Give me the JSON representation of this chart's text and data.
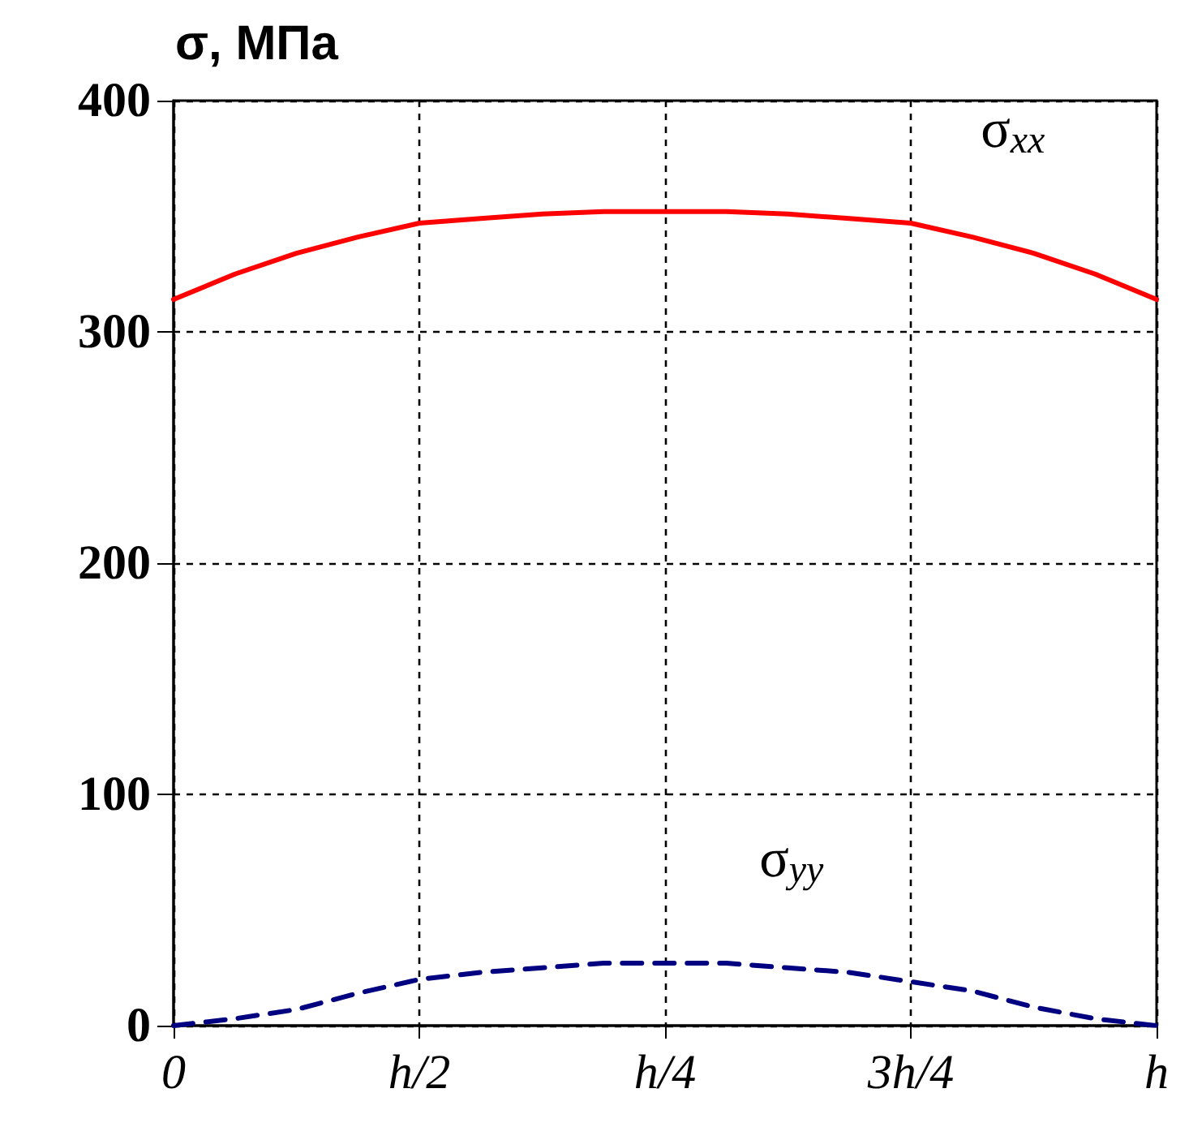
{
  "chart_data": {
    "type": "line",
    "ylabel": "σ, МПа",
    "categories": [
      "0",
      null,
      null,
      null,
      "h/2",
      null,
      null,
      null,
      "h/4",
      null,
      null,
      null,
      "3h/4",
      null,
      null,
      null,
      "h"
    ],
    "series": [
      {
        "name": "σ$_{xx}$",
        "color": "#ff0000",
        "line_style": "solid",
        "values": [
          314,
          325,
          334,
          341,
          347,
          349,
          351,
          352,
          352,
          352,
          351,
          349,
          347,
          341,
          334,
          325,
          314
        ]
      },
      {
        "name": "σ$_{yy}$",
        "color": "#000080",
        "line_style": "dashed",
        "values": [
          0,
          3,
          7,
          14,
          20,
          23,
          25,
          27,
          27,
          27,
          25,
          23,
          19,
          15,
          8,
          3,
          0
        ]
      }
    ],
    "ylim": [
      0,
      400
    ],
    "yticks": [
      0,
      100,
      200,
      300,
      400
    ],
    "grid": true,
    "legend": false
  }
}
